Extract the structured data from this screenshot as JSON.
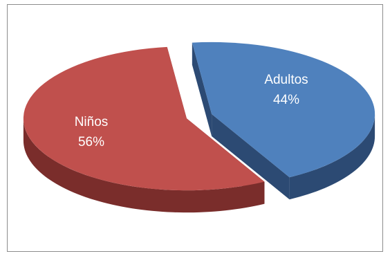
{
  "chart_data": {
    "type": "pie",
    "style": "3d-exploded",
    "title": "",
    "categories": [
      "Adultos",
      "Niños"
    ],
    "values": [
      44,
      56
    ],
    "value_labels": [
      "44%",
      "56%"
    ],
    "legend": "none",
    "colors": {
      "Adultos": {
        "top": "#4f81bd",
        "side": "#2c4a73",
        "label": "#ffffff"
      },
      "Niños": {
        "top": "#c0504d",
        "side": "#7a2d2b",
        "label": "#ffffff"
      }
    }
  }
}
